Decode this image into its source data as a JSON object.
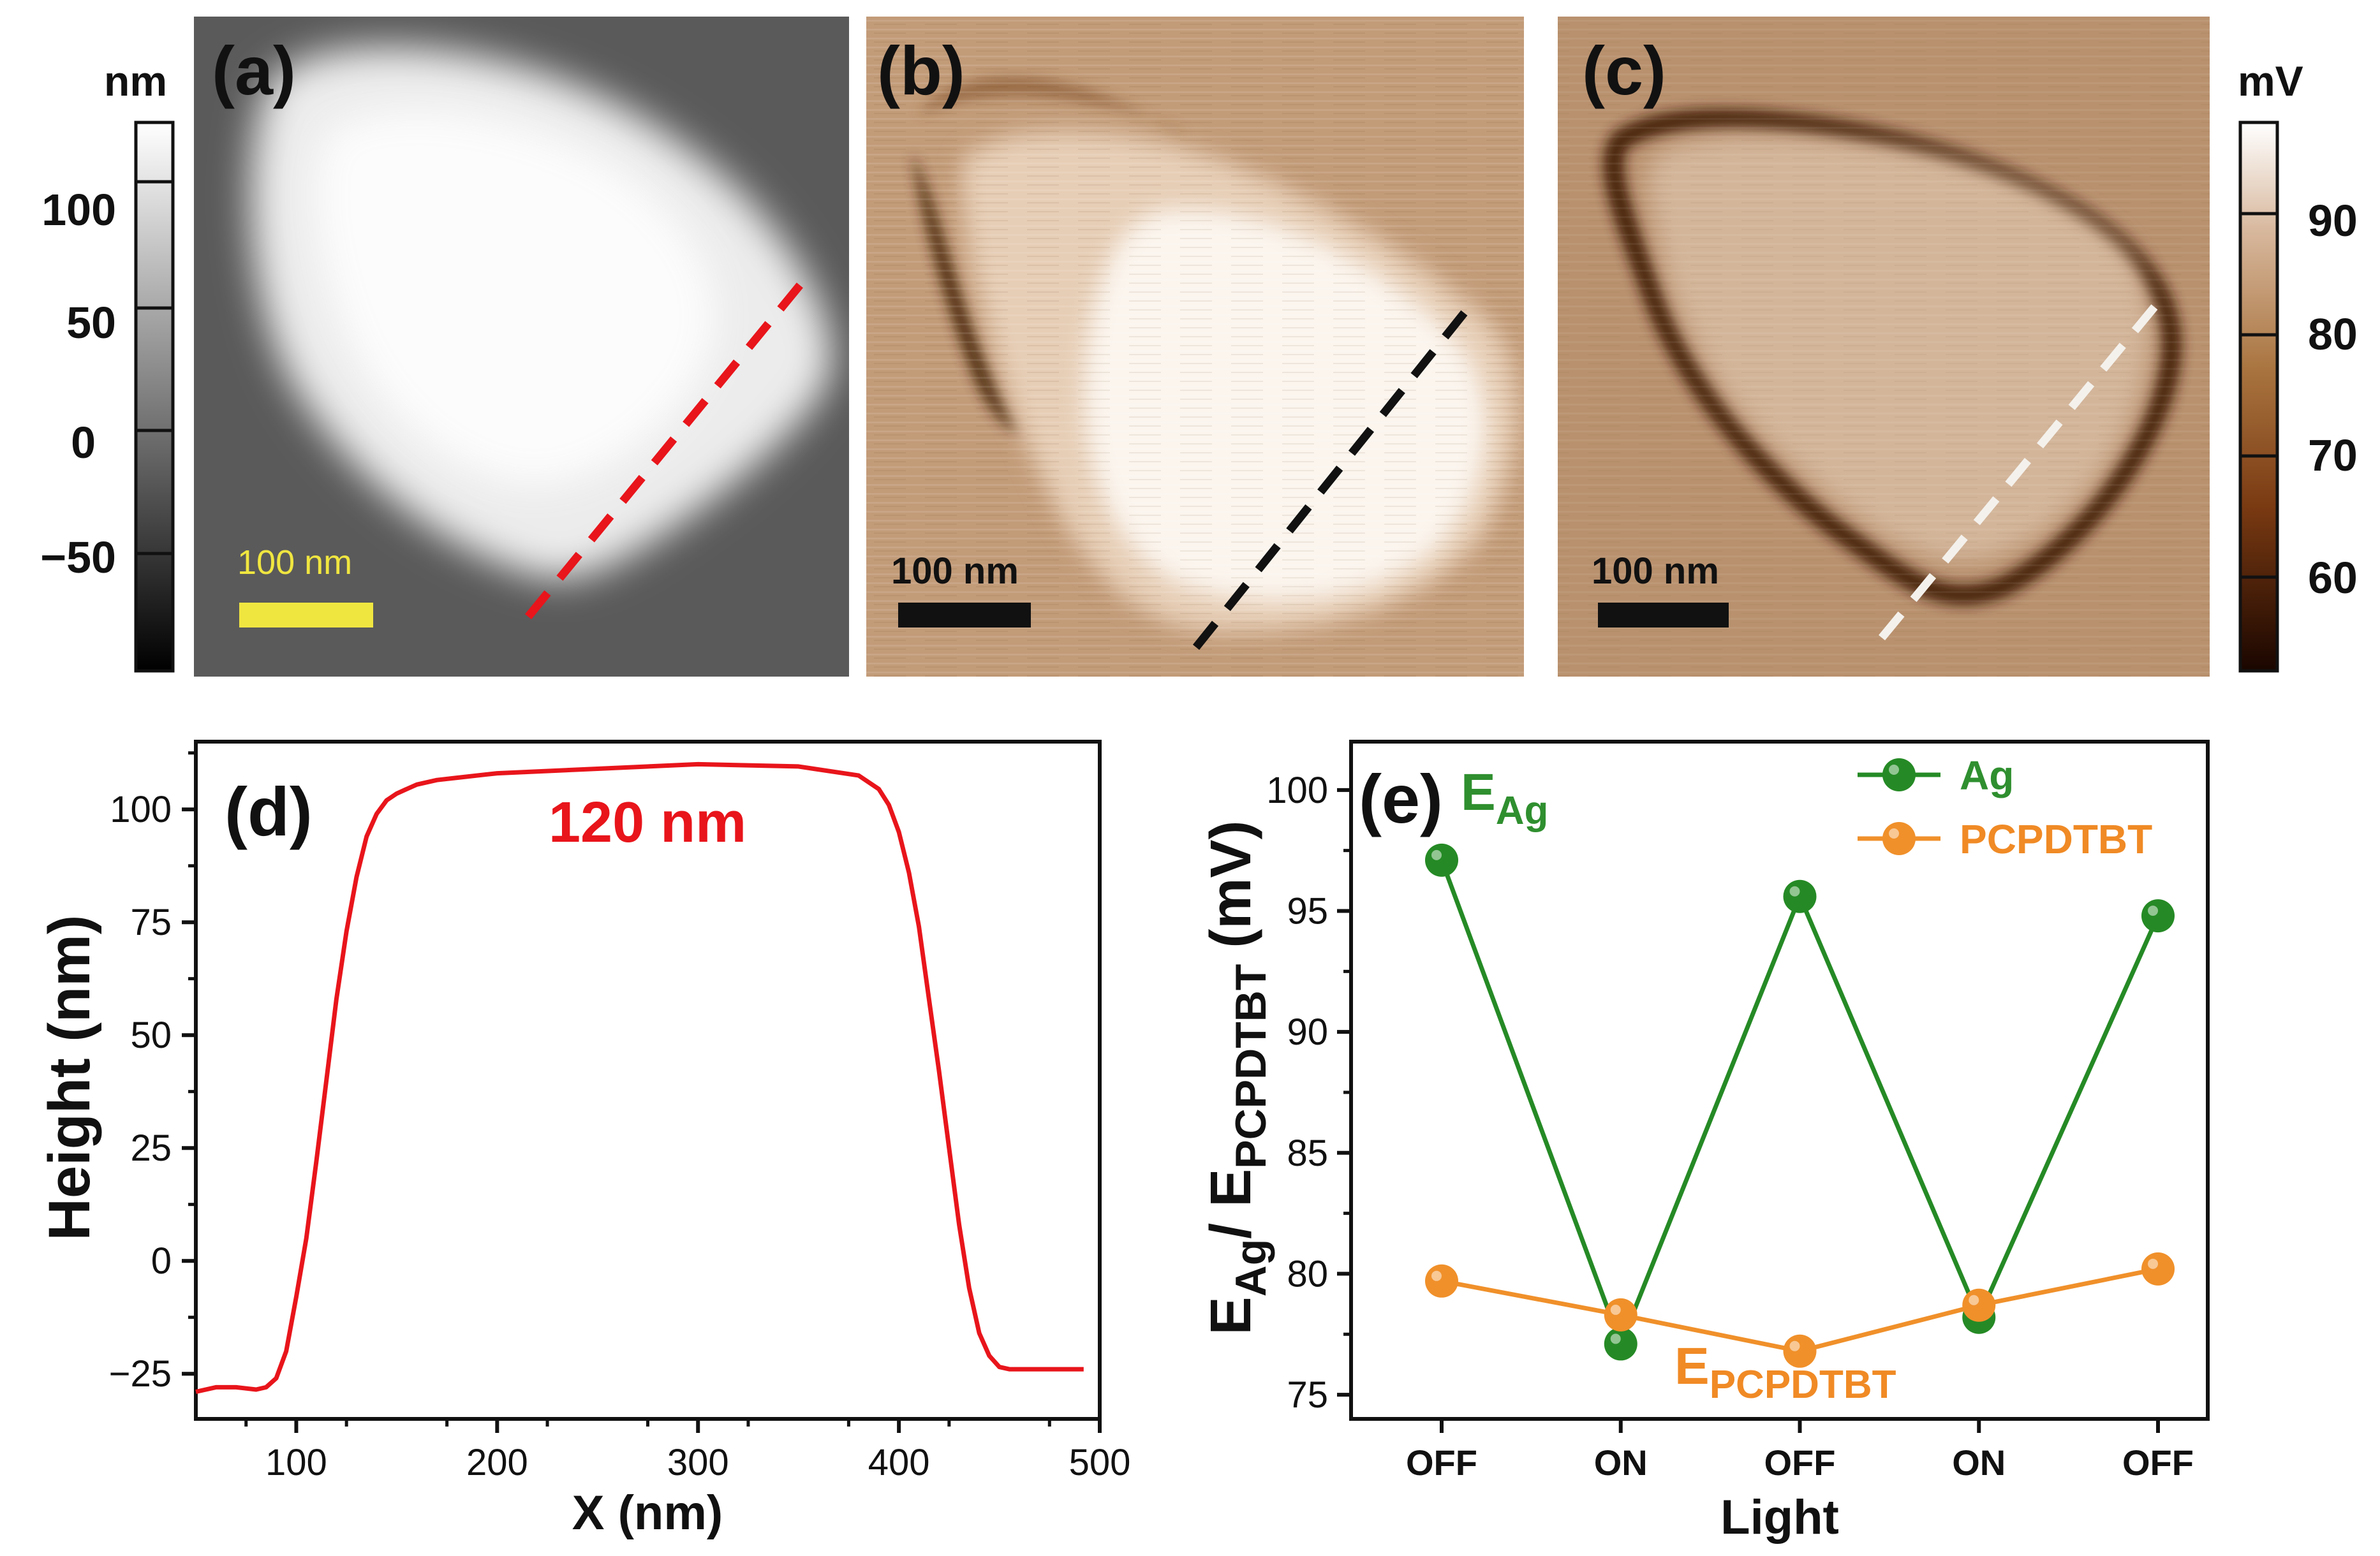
{
  "colors": {
    "height_line": "#e8151b",
    "ag": "#258a25",
    "pcpdtbt": "#f0902a",
    "label_ag": "#2f8f2f",
    "label_pcp": "#f08a25",
    "scalebar_yellow": "#f0e640",
    "panel_c_bg": "#b9916e",
    "panel_b_bg": "#c29b78"
  },
  "panels": {
    "a": {
      "label": "(a)",
      "scalebar": "100 nm",
      "colorbar": {
        "unit": "nm",
        "ticks": [
          "100",
          "50",
          "0",
          "−50"
        ]
      }
    },
    "b": {
      "label": "(b)",
      "scalebar": "100 nm"
    },
    "c": {
      "label": "(c)",
      "scalebar": "100 nm",
      "colorbar": {
        "unit": "mV",
        "ticks": [
          "90",
          "80",
          "70",
          "60"
        ]
      }
    }
  },
  "chart_data": [
    {
      "id": "d",
      "panel_label": "(d)",
      "type": "line",
      "annotation": "120 nm",
      "xlabel": "X (nm)",
      "ylabel": "Height (nm)",
      "xlim": [
        50,
        500
      ],
      "ylim": [
        -35,
        115
      ],
      "xticks": [
        100,
        200,
        300,
        400,
        500
      ],
      "yticks": [
        -25,
        0,
        25,
        50,
        75,
        100
      ],
      "ytick_labels": [
        "−25",
        "0",
        "25",
        "50",
        "75",
        "100"
      ],
      "x": [
        50,
        60,
        70,
        80,
        85,
        90,
        95,
        100,
        105,
        110,
        115,
        120,
        125,
        130,
        135,
        140,
        145,
        150,
        155,
        160,
        170,
        180,
        200,
        250,
        300,
        350,
        380,
        390,
        395,
        400,
        405,
        410,
        415,
        420,
        425,
        430,
        435,
        440,
        445,
        450,
        455,
        460,
        470,
        480,
        492
      ],
      "y": [
        -29,
        -28,
        -28,
        -28.5,
        -28,
        -26,
        -20,
        -8,
        5,
        22,
        40,
        58,
        73,
        85,
        94,
        99,
        102,
        103.5,
        104.5,
        105.5,
        106.5,
        107,
        108,
        109,
        110,
        109.5,
        107.5,
        104.5,
        101,
        95,
        86,
        74,
        58,
        42,
        25,
        8,
        -6,
        -16,
        -21,
        -23.5,
        -24,
        -24,
        -24,
        -24,
        -24
      ]
    },
    {
      "id": "e",
      "panel_label": "(e)",
      "type": "line",
      "xlabel": "Light",
      "ylabel": "E",
      "ylabel_sub1": "Ag",
      "ylabel_mid": "/ E",
      "ylabel_sub2": "PCPDTBT",
      "ylabel_end": " (mV)",
      "categories": [
        "OFF",
        "ON",
        "OFF",
        "ON",
        "OFF"
      ],
      "ylim": [
        74,
        102
      ],
      "yticks": [
        75,
        80,
        85,
        90,
        95,
        100
      ],
      "series": [
        {
          "name": "Ag",
          "values": [
            97.1,
            77.1,
            95.6,
            78.2,
            94.8
          ]
        },
        {
          "name": "PCPDTBT",
          "values": [
            79.7,
            78.3,
            76.8,
            78.7,
            80.2
          ]
        }
      ],
      "annotations": {
        "ag_E": "E",
        "ag_sub": "Ag",
        "pcp_E": "E",
        "pcp_sub": "PCPDTBT"
      },
      "legend": "top-right"
    }
  ]
}
